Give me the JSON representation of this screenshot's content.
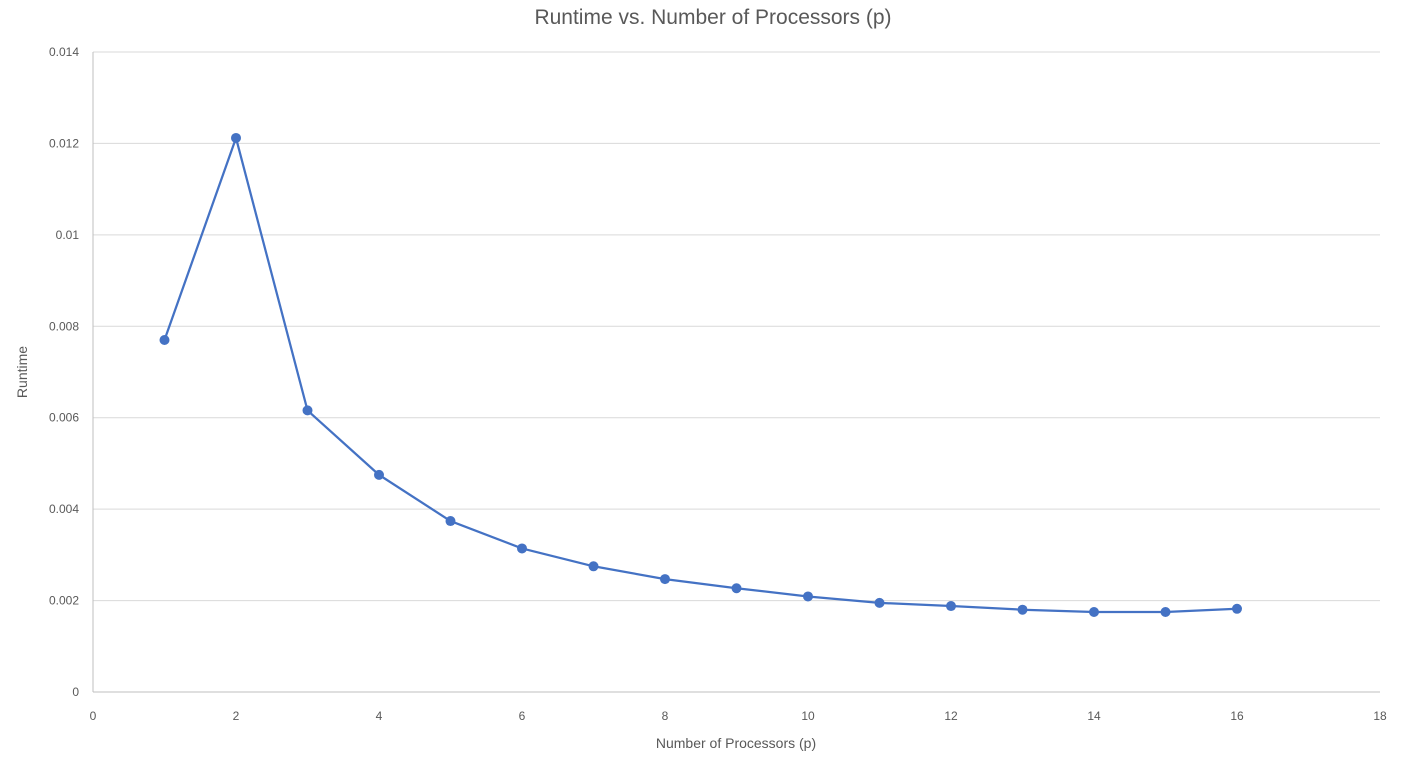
{
  "chart_data": {
    "type": "line",
    "title": "Runtime vs. Number of Processors (p)",
    "xlabel": "Number of Processors (p)",
    "ylabel": "Runtime",
    "xlim": [
      0,
      18
    ],
    "ylim": [
      0,
      0.014
    ],
    "x_ticks": [
      0,
      2,
      4,
      6,
      8,
      10,
      12,
      14,
      16,
      18
    ],
    "y_ticks": [
      0,
      0.002,
      0.004,
      0.006,
      0.008,
      0.01,
      0.012,
      0.014
    ],
    "y_tick_labels": [
      "0",
      "0.002",
      "0.004",
      "0.006",
      "0.008",
      "0.01",
      "0.012",
      "0.014"
    ],
    "grid": true,
    "series_color": "#4472c4",
    "series": [
      {
        "x": [
          1,
          2,
          3,
          4,
          5,
          6,
          7,
          8,
          9,
          10,
          11,
          12,
          13,
          14,
          15,
          16
        ],
        "values": [
          0.0077,
          0.01212,
          0.00616,
          0.00475,
          0.00374,
          0.00314,
          0.00275,
          0.00247,
          0.00227,
          0.00209,
          0.00195,
          0.00188,
          0.0018,
          0.00175,
          0.00175,
          0.00182
        ]
      }
    ]
  }
}
